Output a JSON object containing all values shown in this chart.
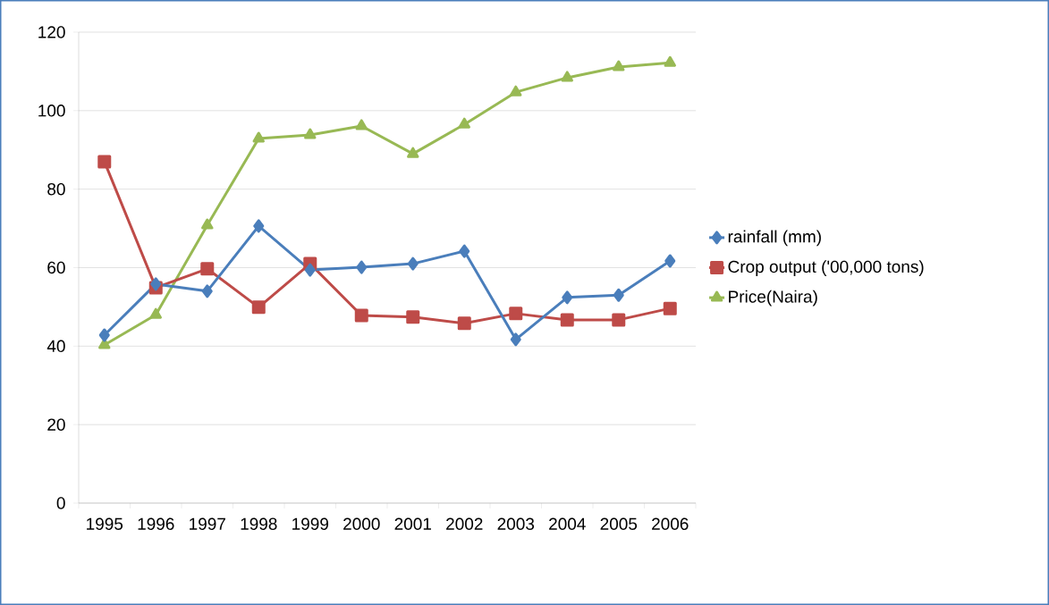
{
  "chart_data": {
    "type": "line",
    "categories": [
      "1995",
      "1996",
      "1997",
      "1998",
      "1999",
      "2000",
      "2001",
      "2002",
      "2003",
      "2004",
      "2005",
      "2006"
    ],
    "series": [
      {
        "name": "rainfall (mm)",
        "color": "#4a7ebb",
        "marker": "diamond",
        "values": [
          42.8,
          55.8,
          54,
          70.6,
          59.4,
          60.1,
          61,
          64.2,
          41.7,
          52.4,
          53,
          61.7
        ]
      },
      {
        "name": "Crop output ('00,000 tons)",
        "color": "#be4b48",
        "marker": "square",
        "values": [
          87,
          54.9,
          59.7,
          49.9,
          61,
          47.8,
          47.4,
          45.8,
          48.3,
          46.7,
          46.7,
          49.6
        ]
      },
      {
        "name": "Price(Naira)",
        "color": "#98b954",
        "marker": "triangle",
        "values": [
          40.3,
          48,
          70.8,
          92.9,
          93.8,
          96.1,
          89,
          96.5,
          104.7,
          108.4,
          111.1,
          112.2
        ]
      }
    ],
    "ylim": [
      0,
      120
    ],
    "yticks": [
      0,
      20,
      40,
      60,
      80,
      100,
      120
    ],
    "grid": "y",
    "legend": "right",
    "line_style": "solid"
  }
}
